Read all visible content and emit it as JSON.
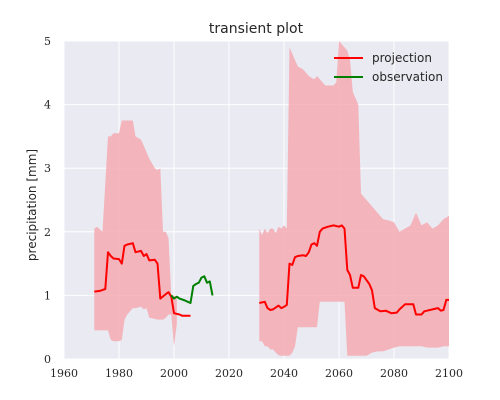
{
  "chart_data": {
    "type": "line",
    "title": "transient plot",
    "xlabel": "",
    "ylabel": "precipitation [mm]",
    "xlim": [
      1960,
      2100
    ],
    "ylim": [
      0,
      5
    ],
    "xticks": [
      1960,
      1980,
      2000,
      2020,
      2040,
      2060,
      2080,
      2100
    ],
    "yticks": [
      0,
      1,
      2,
      3,
      4,
      5
    ],
    "grid": true,
    "legend_position": "top-right",
    "colors": {
      "background": "#eaeaf2",
      "grid": "#ffffff",
      "projection": "#ff0000",
      "observation": "#008000",
      "band": "#f4aab3"
    },
    "series": [
      {
        "name": "projection",
        "color": "#ff0000",
        "segments": [
          [
            [
              1971,
              1.06
            ],
            [
              1973,
              1.07
            ],
            [
              1975,
              1.1
            ],
            [
              1976,
              1.68
            ],
            [
              1977,
              1.62
            ],
            [
              1978,
              1.58
            ],
            [
              1980,
              1.57
            ],
            [
              1981,
              1.5
            ],
            [
              1982,
              1.78
            ],
            [
              1983,
              1.8
            ],
            [
              1985,
              1.82
            ],
            [
              1986,
              1.68
            ],
            [
              1988,
              1.7
            ],
            [
              1989,
              1.62
            ],
            [
              1990,
              1.65
            ],
            [
              1991,
              1.55
            ],
            [
              1993,
              1.56
            ],
            [
              1994,
              1.5
            ],
            [
              1995,
              0.95
            ],
            [
              1997,
              1.02
            ],
            [
              1998,
              1.05
            ],
            [
              1999,
              0.98
            ],
            [
              2000,
              0.72
            ],
            [
              2002,
              0.7
            ],
            [
              2003,
              0.68
            ],
            [
              2006,
              0.68
            ]
          ],
          [
            [
              2031,
              0.88
            ],
            [
              2033,
              0.9
            ],
            [
              2034,
              0.8
            ],
            [
              2035,
              0.77
            ],
            [
              2036,
              0.78
            ],
            [
              2038,
              0.84
            ],
            [
              2039,
              0.8
            ],
            [
              2040,
              0.82
            ],
            [
              2041,
              0.85
            ],
            [
              2042,
              1.5
            ],
            [
              2043,
              1.48
            ],
            [
              2044,
              1.6
            ],
            [
              2045,
              1.62
            ],
            [
              2047,
              1.63
            ],
            [
              2048,
              1.62
            ],
            [
              2049,
              1.68
            ],
            [
              2050,
              1.8
            ],
            [
              2051,
              1.82
            ],
            [
              2052,
              1.78
            ],
            [
              2053,
              2.0
            ],
            [
              2054,
              2.05
            ],
            [
              2056,
              2.08
            ],
            [
              2058,
              2.1
            ],
            [
              2060,
              2.08
            ],
            [
              2061,
              2.1
            ],
            [
              2062,
              2.05
            ],
            [
              2063,
              1.4
            ],
            [
              2064,
              1.32
            ],
            [
              2065,
              1.12
            ],
            [
              2067,
              1.12
            ],
            [
              2068,
              1.32
            ],
            [
              2069,
              1.3
            ],
            [
              2071,
              1.18
            ],
            [
              2072,
              1.08
            ],
            [
              2073,
              0.8
            ],
            [
              2075,
              0.75
            ],
            [
              2077,
              0.76
            ],
            [
              2079,
              0.72
            ],
            [
              2081,
              0.73
            ],
            [
              2082,
              0.78
            ],
            [
              2083,
              0.82
            ],
            [
              2084,
              0.86
            ],
            [
              2087,
              0.86
            ],
            [
              2088,
              0.7
            ],
            [
              2090,
              0.7
            ],
            [
              2091,
              0.75
            ],
            [
              2094,
              0.78
            ],
            [
              2096,
              0.8
            ],
            [
              2097,
              0.76
            ],
            [
              2098,
              0.77
            ],
            [
              2099,
              0.93
            ],
            [
              2100,
              0.93
            ]
          ]
        ]
      },
      {
        "name": "observation",
        "color": "#008000",
        "segments": [
          [
            [
              1999,
              1.0
            ],
            [
              2000,
              0.95
            ],
            [
              2001,
              0.98
            ],
            [
              2002,
              0.95
            ],
            [
              2004,
              0.92
            ],
            [
              2005,
              0.9
            ],
            [
              2006,
              0.88
            ],
            [
              2007,
              1.15
            ],
            [
              2008,
              1.18
            ],
            [
              2009,
              1.2
            ],
            [
              2010,
              1.28
            ],
            [
              2011,
              1.3
            ],
            [
              2012,
              1.2
            ],
            [
              2013,
              1.22
            ],
            [
              2014,
              1.0
            ]
          ]
        ]
      }
    ],
    "band": {
      "name": "projection range",
      "color": "#f4aab3",
      "segments": [
        [
          [
            1971,
            2.05,
            0.45
          ],
          [
            1972,
            2.08,
            0.45
          ],
          [
            1974,
            2.0,
            0.45
          ],
          [
            1976,
            3.5,
            0.45
          ],
          [
            1977,
            3.5,
            0.3
          ],
          [
            1978,
            3.55,
            0.28
          ],
          [
            1980,
            3.55,
            0.28
          ],
          [
            1981,
            3.75,
            0.3
          ],
          [
            1982,
            3.75,
            0.62
          ],
          [
            1983,
            3.75,
            0.7
          ],
          [
            1985,
            3.75,
            0.8
          ],
          [
            1986,
            3.5,
            0.8
          ],
          [
            1988,
            3.45,
            0.82
          ],
          [
            1989,
            3.35,
            0.78
          ],
          [
            1990,
            3.25,
            0.8
          ],
          [
            1991,
            3.15,
            0.65
          ],
          [
            1993,
            3.0,
            0.63
          ],
          [
            1994,
            2.97,
            0.62
          ],
          [
            1995,
            3.0,
            0.62
          ],
          [
            1996,
            2.0,
            0.62
          ],
          [
            1997,
            2.0,
            0.65
          ],
          [
            1998,
            1.9,
            0.7
          ],
          [
            1999,
            1.0,
            0.7
          ],
          [
            2000,
            1.0,
            0.2
          ],
          [
            2001,
            0.95,
            0.55
          ]
        ],
        [
          [
            2031,
            2.05,
            0.28
          ],
          [
            2032,
            1.95,
            0.28
          ],
          [
            2033,
            2.05,
            0.2
          ],
          [
            2034,
            1.98,
            0.2
          ],
          [
            2035,
            2.05,
            0.15
          ],
          [
            2036,
            2.05,
            0.15
          ],
          [
            2037,
            1.98,
            0.1
          ],
          [
            2038,
            2.08,
            0.06
          ],
          [
            2039,
            2.05,
            0.05
          ],
          [
            2040,
            2.1,
            0.05
          ],
          [
            2041,
            2.05,
            0.05
          ],
          [
            2042,
            4.9,
            0.05
          ],
          [
            2043,
            4.8,
            0.1
          ],
          [
            2044,
            4.7,
            0.2
          ],
          [
            2045,
            4.6,
            0.5
          ],
          [
            2047,
            4.55,
            0.5
          ],
          [
            2048,
            4.5,
            0.5
          ],
          [
            2049,
            4.45,
            0.5
          ],
          [
            2050,
            4.42,
            0.5
          ],
          [
            2051,
            4.4,
            0.5
          ],
          [
            2052,
            4.45,
            0.5
          ],
          [
            2053,
            4.4,
            0.9
          ],
          [
            2055,
            4.3,
            0.9
          ],
          [
            2057,
            4.3,
            0.9
          ],
          [
            2058,
            4.3,
            0.9
          ],
          [
            2059,
            4.35,
            0.9
          ],
          [
            2060,
            5.0,
            0.9
          ],
          [
            2061,
            4.95,
            0.9
          ],
          [
            2062,
            4.9,
            0.9
          ],
          [
            2063,
            4.85,
            0.05
          ],
          [
            2064,
            4.7,
            0.05
          ],
          [
            2065,
            4.2,
            0.05
          ],
          [
            2067,
            4.0,
            0.05
          ],
          [
            2068,
            2.6,
            0.05
          ],
          [
            2070,
            2.5,
            0.05
          ],
          [
            2072,
            2.4,
            0.1
          ],
          [
            2074,
            2.3,
            0.12
          ],
          [
            2076,
            2.2,
            0.12
          ],
          [
            2078,
            2.18,
            0.15
          ],
          [
            2080,
            2.15,
            0.18
          ],
          [
            2082,
            2.0,
            0.2
          ],
          [
            2084,
            2.05,
            0.2
          ],
          [
            2086,
            2.1,
            0.2
          ],
          [
            2088,
            2.3,
            0.2
          ],
          [
            2090,
            2.1,
            0.2
          ],
          [
            2092,
            2.15,
            0.18
          ],
          [
            2094,
            2.05,
            0.18
          ],
          [
            2096,
            2.1,
            0.18
          ],
          [
            2098,
            2.2,
            0.2
          ],
          [
            2100,
            2.25,
            0.2
          ]
        ]
      ]
    }
  }
}
